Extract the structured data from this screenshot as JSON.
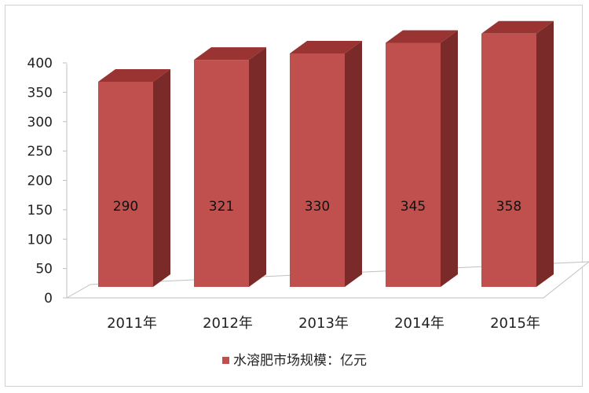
{
  "chart_data": {
    "type": "bar",
    "title": "",
    "xlabel": "",
    "ylabel": "",
    "categories": [
      "2011年",
      "2012年",
      "2013年",
      "2014年",
      "2015年"
    ],
    "series": [
      {
        "name": "水溶肥市场规模：亿元",
        "values": [
          290,
          321,
          330,
          345,
          358
        ]
      }
    ],
    "data_labels": [
      "290",
      "321",
      "330",
      "345",
      "358"
    ],
    "y_ticks": [
      "0",
      "50",
      "100",
      "150",
      "200",
      "250",
      "300",
      "350",
      "400"
    ],
    "ylim": [
      0,
      400
    ],
    "grid": false,
    "legend_position": "bottom",
    "style": "3d-column",
    "colors": {
      "bar_front": "#c0504d",
      "bar_side": "#7a2a28",
      "bar_top": "#9a3432"
    }
  }
}
